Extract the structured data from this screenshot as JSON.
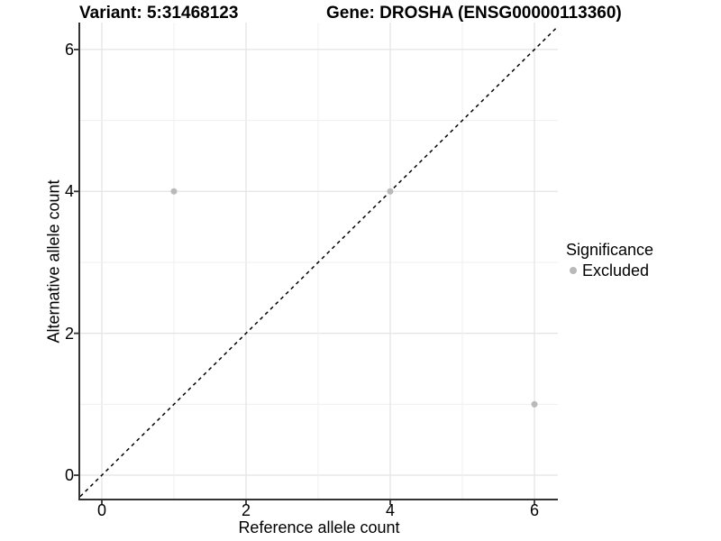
{
  "titles": {
    "variant": "Variant: 5:31468123",
    "gene": "Gene: DROSHA (ENSG00000113360)"
  },
  "axes": {
    "x_label": "Reference allele count",
    "y_label": "Alternative allele count"
  },
  "legend": {
    "title": "Significance",
    "items": [
      {
        "label": "Excluded",
        "color": "#b9b9b9",
        "marker": "circle-icon"
      }
    ]
  },
  "colors": {
    "background": "#ffffff",
    "axis_line": "#333333",
    "grid_major": "#e4e4e4",
    "grid_minor": "#efefef",
    "point": "#b9b9b9",
    "reference_line": "#000000",
    "text": "#000000"
  },
  "chart_data": {
    "type": "scatter",
    "title": "Variant: 5:31468123 | Gene: DROSHA (ENSG00000113360)",
    "xlabel": "Reference allele count",
    "ylabel": "Alternative allele count",
    "xlim": [
      -0.3,
      6.325
    ],
    "ylim": [
      -0.33,
      6.38
    ],
    "x_ticks": [
      0,
      2,
      4,
      6
    ],
    "y_ticks": [
      0,
      2,
      4,
      6
    ],
    "grid_lines_at": [
      0,
      1,
      2,
      3,
      4,
      5,
      6
    ],
    "grid": "on",
    "legend_position": "right",
    "series": [
      {
        "name": "Excluded",
        "color": "#b9b9b9",
        "points": [
          {
            "x": 1,
            "y": 4
          },
          {
            "x": 4,
            "y": 4
          },
          {
            "x": 6,
            "y": 1
          }
        ]
      }
    ],
    "reference_line": {
      "type": "abline",
      "slope": 1,
      "intercept": 0,
      "style": "dashed",
      "color": "#000000"
    }
  }
}
